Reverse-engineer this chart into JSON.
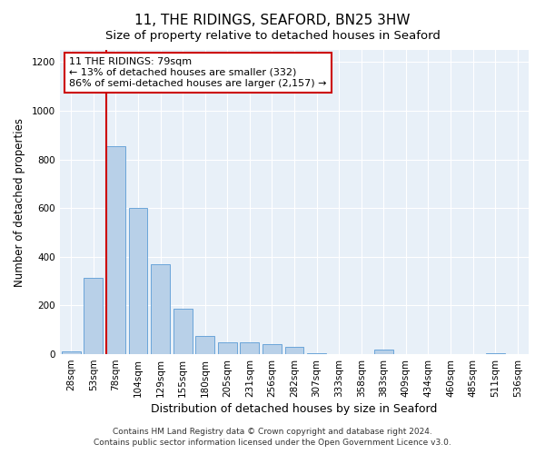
{
  "title": "11, THE RIDINGS, SEAFORD, BN25 3HW",
  "subtitle": "Size of property relative to detached houses in Seaford",
  "xlabel": "Distribution of detached houses by size in Seaford",
  "ylabel": "Number of detached properties",
  "footer_line1": "Contains HM Land Registry data © Crown copyright and database right 2024.",
  "footer_line2": "Contains public sector information licensed under the Open Government Licence v3.0.",
  "bar_labels": [
    "28sqm",
    "53sqm",
    "78sqm",
    "104sqm",
    "129sqm",
    "155sqm",
    "180sqm",
    "205sqm",
    "231sqm",
    "256sqm",
    "282sqm",
    "307sqm",
    "333sqm",
    "358sqm",
    "383sqm",
    "409sqm",
    "434sqm",
    "460sqm",
    "485sqm",
    "511sqm",
    "536sqm"
  ],
  "bar_values": [
    10,
    315,
    855,
    600,
    370,
    185,
    75,
    50,
    50,
    40,
    30,
    5,
    0,
    0,
    20,
    0,
    0,
    0,
    0,
    5,
    0
  ],
  "bar_color": "#b8d0e8",
  "bar_edgecolor": "#5b9bd5",
  "vline_index": 2,
  "vline_color": "#cc0000",
  "annotation_line1": "11 THE RIDINGS: 79sqm",
  "annotation_line2": "← 13% of detached houses are smaller (332)",
  "annotation_line3": "86% of semi-detached houses are larger (2,157) →",
  "annotation_box_color": "#cc0000",
  "ylim": [
    0,
    1250
  ],
  "yticks": [
    0,
    200,
    400,
    600,
    800,
    1000,
    1200
  ],
  "plot_bg_color": "#e8f0f8",
  "title_fontsize": 11,
  "subtitle_fontsize": 9.5,
  "xlabel_fontsize": 9,
  "ylabel_fontsize": 8.5,
  "tick_fontsize": 7.5,
  "footer_fontsize": 6.5,
  "annotation_fontsize": 8
}
